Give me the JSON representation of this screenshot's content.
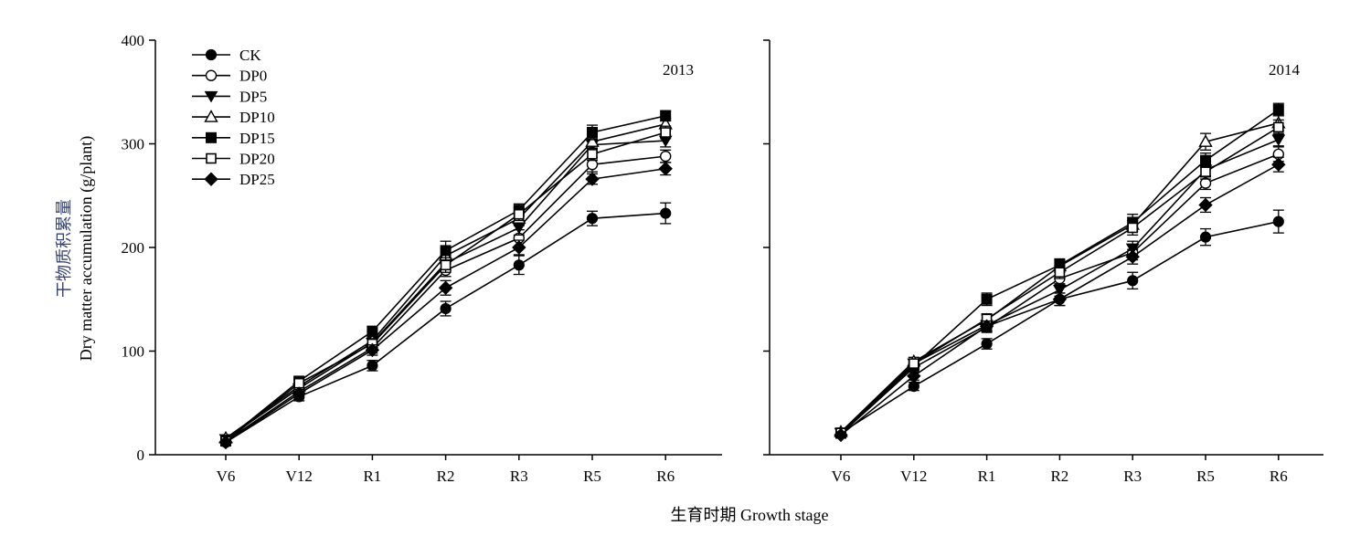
{
  "chart_data": [
    {
      "type": "line",
      "panel": "left",
      "year_label": "2013",
      "categories": [
        "V6",
        "V12",
        "R1",
        "R2",
        "R3",
        "R5",
        "R6"
      ],
      "ylim": [
        0,
        400
      ],
      "yticks": [
        0,
        100,
        200,
        300,
        400
      ],
      "series": [
        {
          "name": "CK",
          "marker": "circle-filled",
          "values": [
            12,
            56,
            86,
            141,
            183,
            228,
            233
          ],
          "errors": [
            3,
            4,
            5,
            7,
            9,
            7,
            10
          ]
        },
        {
          "name": "DP0",
          "marker": "circle-open",
          "values": [
            13,
            61,
            103,
            178,
            209,
            280,
            288
          ],
          "errors": [
            3,
            4,
            5,
            6,
            8,
            7,
            6
          ]
        },
        {
          "name": "DP5",
          "marker": "triangle-down",
          "values": [
            15,
            64,
            108,
            185,
            219,
            299,
            303
          ],
          "errors": [
            3,
            4,
            5,
            6,
            7,
            6,
            6
          ]
        },
        {
          "name": "DP10",
          "marker": "triangle-open",
          "values": [
            16,
            66,
            110,
            192,
            228,
            302,
            319
          ],
          "errors": [
            3,
            4,
            5,
            7,
            7,
            7,
            6
          ]
        },
        {
          "name": "DP15",
          "marker": "square-filled",
          "values": [
            14,
            71,
            119,
            197,
            236,
            311,
            327
          ],
          "errors": [
            3,
            4,
            5,
            9,
            6,
            7,
            5
          ]
        },
        {
          "name": "DP20",
          "marker": "square-open",
          "values": [
            13,
            69,
            107,
            183,
            232,
            290,
            311
          ],
          "errors": [
            3,
            4,
            5,
            7,
            6,
            6,
            6
          ]
        },
        {
          "name": "DP25",
          "marker": "diamond-filled",
          "values": [
            12,
            59,
            101,
            161,
            200,
            266,
            276
          ],
          "errors": [
            3,
            4,
            5,
            7,
            7,
            5,
            6
          ]
        }
      ]
    },
    {
      "type": "line",
      "panel": "right",
      "year_label": "2014",
      "categories": [
        "V6",
        "V12",
        "R1",
        "R2",
        "R3",
        "R5",
        "R6"
      ],
      "ylim": [
        0,
        400
      ],
      "yticks": [
        0,
        100,
        200,
        300,
        400
      ],
      "series": [
        {
          "name": "CK",
          "marker": "circle-filled",
          "values": [
            21,
            66,
            107,
            150,
            168,
            210,
            225
          ],
          "errors": [
            3,
            4,
            5,
            6,
            8,
            8,
            11
          ]
        },
        {
          "name": "DP0",
          "marker": "circle-open",
          "values": [
            20,
            84,
            123,
            170,
            195,
            262,
            290
          ],
          "errors": [
            3,
            4,
            5,
            6,
            7,
            6,
            7
          ]
        },
        {
          "name": "DP5",
          "marker": "triangle-down",
          "values": [
            21,
            88,
            125,
            159,
            199,
            275,
            304
          ],
          "errors": [
            3,
            4,
            5,
            6,
            7,
            6,
            6
          ]
        },
        {
          "name": "DP10",
          "marker": "triangle-open",
          "values": [
            22,
            90,
            130,
            182,
            222,
            302,
            320
          ],
          "errors": [
            3,
            4,
            5,
            6,
            7,
            8,
            7
          ]
        },
        {
          "name": "DP15",
          "marker": "square-filled",
          "values": [
            21,
            86,
            150,
            183,
            224,
            284,
            333
          ],
          "errors": [
            3,
            4,
            6,
            6,
            8,
            7,
            6
          ]
        },
        {
          "name": "DP20",
          "marker": "square-open",
          "values": [
            21,
            88,
            131,
            176,
            219,
            273,
            316
          ],
          "errors": [
            3,
            4,
            5,
            6,
            7,
            7,
            7
          ]
        },
        {
          "name": "DP25",
          "marker": "diamond-filled",
          "values": [
            19,
            76,
            124,
            150,
            191,
            241,
            280
          ],
          "errors": [
            3,
            4,
            5,
            6,
            7,
            7,
            7
          ]
        }
      ]
    }
  ],
  "labels": {
    "y_title_cn": "干物质积累量",
    "y_title_en": "Dry matter accumulation (g/plant)",
    "x_title": "生育时期 Growth stage"
  },
  "legend_location": "top-left",
  "colors": {
    "line": "#000000",
    "y_title_cn": "#3a4470"
  }
}
